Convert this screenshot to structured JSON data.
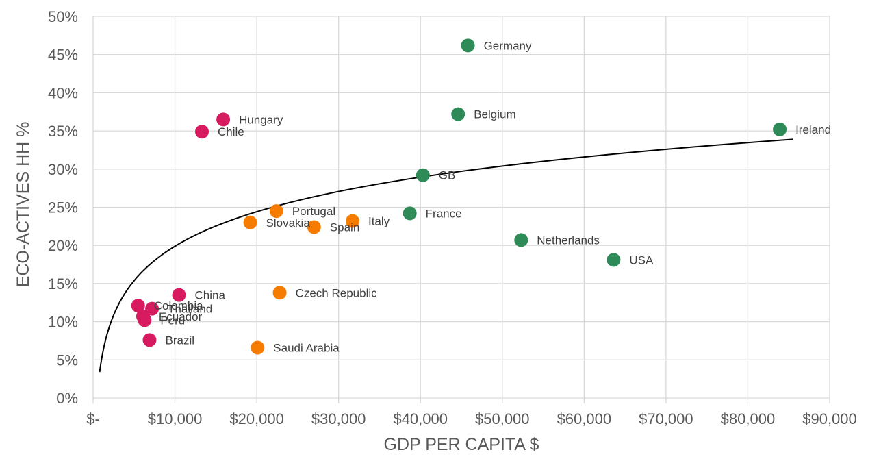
{
  "chart_data": {
    "type": "scatter",
    "title": "",
    "xlabel": "GDP PER CAPITA $",
    "ylabel": "ECO-ACTIVES HH %",
    "xlim": [
      0,
      90000
    ],
    "ylim": [
      0,
      50
    ],
    "grid": true,
    "legend": "none",
    "x_ticks": [
      {
        "value": 0,
        "label": "$-"
      },
      {
        "value": 10000,
        "label": "$10,000"
      },
      {
        "value": 20000,
        "label": "$20,000"
      },
      {
        "value": 30000,
        "label": "$30,000"
      },
      {
        "value": 40000,
        "label": "$40,000"
      },
      {
        "value": 50000,
        "label": "$50,000"
      },
      {
        "value": 60000,
        "label": "$60,000"
      },
      {
        "value": 70000,
        "label": "$70,000"
      },
      {
        "value": 80000,
        "label": "$80,000"
      },
      {
        "value": 90000,
        "label": "$90,000"
      }
    ],
    "y_ticks": [
      {
        "value": 0,
        "label": "0%"
      },
      {
        "value": 5,
        "label": "5%"
      },
      {
        "value": 10,
        "label": "10%"
      },
      {
        "value": 15,
        "label": "15%"
      },
      {
        "value": 20,
        "label": "20%"
      },
      {
        "value": 25,
        "label": "25%"
      },
      {
        "value": 30,
        "label": "30%"
      },
      {
        "value": 35,
        "label": "35%"
      },
      {
        "value": 40,
        "label": "40%"
      },
      {
        "value": 45,
        "label": "45%"
      },
      {
        "value": 50,
        "label": "50%"
      }
    ],
    "colors": {
      "pink": "#d81b60",
      "orange": "#f57c00",
      "green": "#2e8b57"
    },
    "points": [
      {
        "label": "Germany",
        "x": 45800,
        "y": 46.2,
        "color": "green"
      },
      {
        "label": "Belgium",
        "x": 44600,
        "y": 37.2,
        "color": "green"
      },
      {
        "label": "Ireland",
        "x": 83900,
        "y": 35.2,
        "color": "green"
      },
      {
        "label": "GB",
        "x": 40300,
        "y": 29.2,
        "color": "green"
      },
      {
        "label": "France",
        "x": 38700,
        "y": 24.2,
        "color": "green"
      },
      {
        "label": "Netherlands",
        "x": 52300,
        "y": 20.7,
        "color": "green"
      },
      {
        "label": "USA",
        "x": 63600,
        "y": 18.1,
        "color": "green"
      },
      {
        "label": "Hungary",
        "x": 15900,
        "y": 36.5,
        "color": "pink"
      },
      {
        "label": "Chile",
        "x": 13300,
        "y": 34.9,
        "color": "pink"
      },
      {
        "label": "China",
        "x": 10500,
        "y": 13.5,
        "color": "pink"
      },
      {
        "label": "Colombia",
        "x": 5500,
        "y": 12.1,
        "color": "pink"
      },
      {
        "label": "Thailand",
        "x": 7200,
        "y": 11.7,
        "color": "pink"
      },
      {
        "label": "Ecuador",
        "x": 6100,
        "y": 10.7,
        "color": "pink"
      },
      {
        "label": "Peru",
        "x": 6300,
        "y": 10.2,
        "color": "pink"
      },
      {
        "label": "Brazil",
        "x": 6900,
        "y": 7.6,
        "color": "pink"
      },
      {
        "label": "Portugal",
        "x": 22400,
        "y": 24.5,
        "color": "orange"
      },
      {
        "label": "Slovakia",
        "x": 19200,
        "y": 23.0,
        "color": "orange"
      },
      {
        "label": "Spain",
        "x": 27000,
        "y": 22.4,
        "color": "orange"
      },
      {
        "label": "Italy",
        "x": 31700,
        "y": 23.2,
        "color": "orange"
      },
      {
        "label": "Czech Republic",
        "x": 22800,
        "y": 13.8,
        "color": "orange"
      },
      {
        "label": "Saudi Arabia",
        "x": 20100,
        "y": 6.6,
        "color": "orange"
      }
    ],
    "trendline": {
      "type": "logarithmic",
      "x_range": [
        800,
        85500
      ],
      "y_at_start": 3.4,
      "y_at_end": 33.9
    }
  }
}
